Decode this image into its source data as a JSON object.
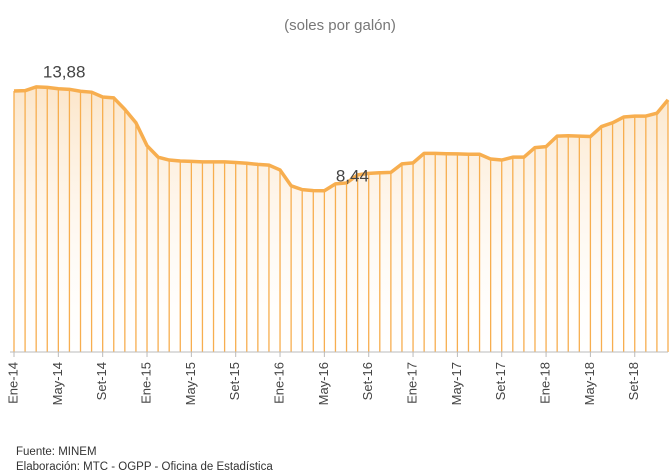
{
  "chart_data": {
    "type": "line",
    "subtitle": "(soles por galón)",
    "categories": [
      "Ene-14",
      null,
      null,
      null,
      "May-14",
      null,
      null,
      null,
      "Set-14",
      null,
      null,
      null,
      "Ene-15",
      null,
      null,
      null,
      "May-15",
      null,
      null,
      null,
      "Set-15",
      null,
      null,
      null,
      "Ene-16",
      null,
      null,
      null,
      "May-16",
      null,
      null,
      null,
      "Set-16",
      null,
      null,
      null,
      "Ene-17",
      null,
      null,
      null,
      "May-17",
      null,
      null,
      null,
      "Set-17",
      null,
      null,
      null,
      "Ene-18",
      null,
      null,
      null,
      "May-18",
      null,
      null,
      null,
      "Set-18",
      null,
      null,
      null
    ],
    "values": [
      13.66,
      13.68,
      13.88,
      13.85,
      13.78,
      13.75,
      13.65,
      13.6,
      13.35,
      13.3,
      12.7,
      12.0,
      10.8,
      10.2,
      10.05,
      10.0,
      9.98,
      9.95,
      9.95,
      9.95,
      9.92,
      9.88,
      9.82,
      9.78,
      9.53,
      8.7,
      8.5,
      8.45,
      8.44,
      8.8,
      8.85,
      9.27,
      9.35,
      9.38,
      9.4,
      9.85,
      9.9,
      10.4,
      10.4,
      10.38,
      10.37,
      10.35,
      10.35,
      10.1,
      10.05,
      10.2,
      10.2,
      10.7,
      10.75,
      11.3,
      11.32,
      11.3,
      11.28,
      11.8,
      12.0,
      12.3,
      12.35,
      12.35,
      12.5,
      13.2
    ],
    "value_labels": [
      null,
      null,
      "13,88",
      null,
      null,
      null,
      null,
      null,
      null,
      null,
      null,
      null,
      null,
      null,
      null,
      null,
      null,
      null,
      null,
      null,
      null,
      null,
      null,
      null,
      null,
      null,
      null,
      null,
      "8,44",
      null,
      null,
      null,
      null,
      null,
      null,
      null,
      null,
      null,
      null,
      null,
      null,
      null,
      null,
      null,
      null,
      null,
      null,
      null,
      null,
      null,
      null,
      null,
      null,
      null,
      null,
      null,
      null,
      null,
      null,
      null
    ],
    "color": "#f7ae4f",
    "ylim": [
      0,
      14.5
    ],
    "notes": [
      "Fuente: MINEM",
      "Elaboración: MTC - OGPP - Oficina de Estadística"
    ]
  }
}
